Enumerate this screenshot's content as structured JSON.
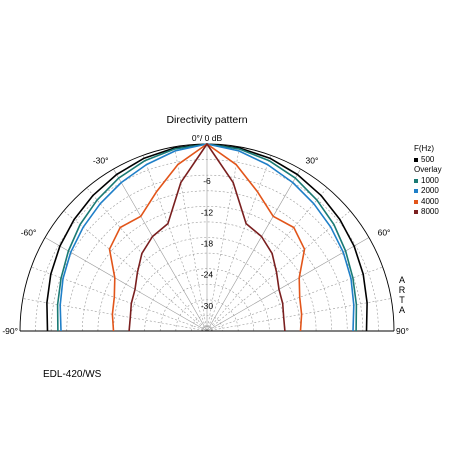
{
  "chart_data": {
    "type": "polar",
    "title": "Directivity pattern",
    "radial_ticks": [
      "0°/ 0 dB",
      "-6",
      "-12",
      "-18",
      "-24",
      "-30"
    ],
    "angle_ticks": [
      "-90°",
      "-60°",
      "-30°",
      "30°",
      "60°",
      "90°"
    ],
    "radial_range_db": [
      -36,
      0
    ],
    "angle_range_deg": [
      -90,
      90
    ],
    "legend_header": "F(Hz)",
    "legend_overlay_label": "Overlay",
    "angles_deg": [
      0,
      10,
      20,
      30,
      40,
      50,
      60,
      70,
      80,
      90
    ],
    "series": [
      {
        "name": "500",
        "color": "#000000",
        "values_db": [
          0,
          -0.2,
          -0.6,
          -1.2,
          -1.9,
          -2.6,
          -3.3,
          -4.0,
          -4.7,
          -5.3
        ]
      },
      {
        "name": "1000",
        "color": "#1a7a74",
        "values_db": [
          0,
          -0.4,
          -1.1,
          -2.0,
          -3.1,
          -4.1,
          -5.2,
          -6.1,
          -6.8,
          -7.3
        ]
      },
      {
        "name": "2000",
        "color": "#1f7fc8",
        "values_db": [
          0,
          -0.8,
          -1.9,
          -3.0,
          -4.0,
          -4.9,
          -5.7,
          -6.5,
          -7.3,
          -7.9
        ]
      },
      {
        "name": "4000",
        "color": "#e2551a",
        "values_db": [
          0,
          -3.5,
          -7.5,
          -10.5,
          -10.0,
          -11.5,
          -15.5,
          -17.0,
          -17.5,
          -18.0
        ]
      },
      {
        "name": "8000",
        "color": "#7a1f1f",
        "values_db": [
          0,
          -7.0,
          -14.0,
          -15.0,
          -16.5,
          -18.5,
          -20.0,
          -20.5,
          -21.0,
          -21.0
        ]
      }
    ]
  },
  "footer_label": "EDL-420/WS",
  "brand_label": "ARTA"
}
